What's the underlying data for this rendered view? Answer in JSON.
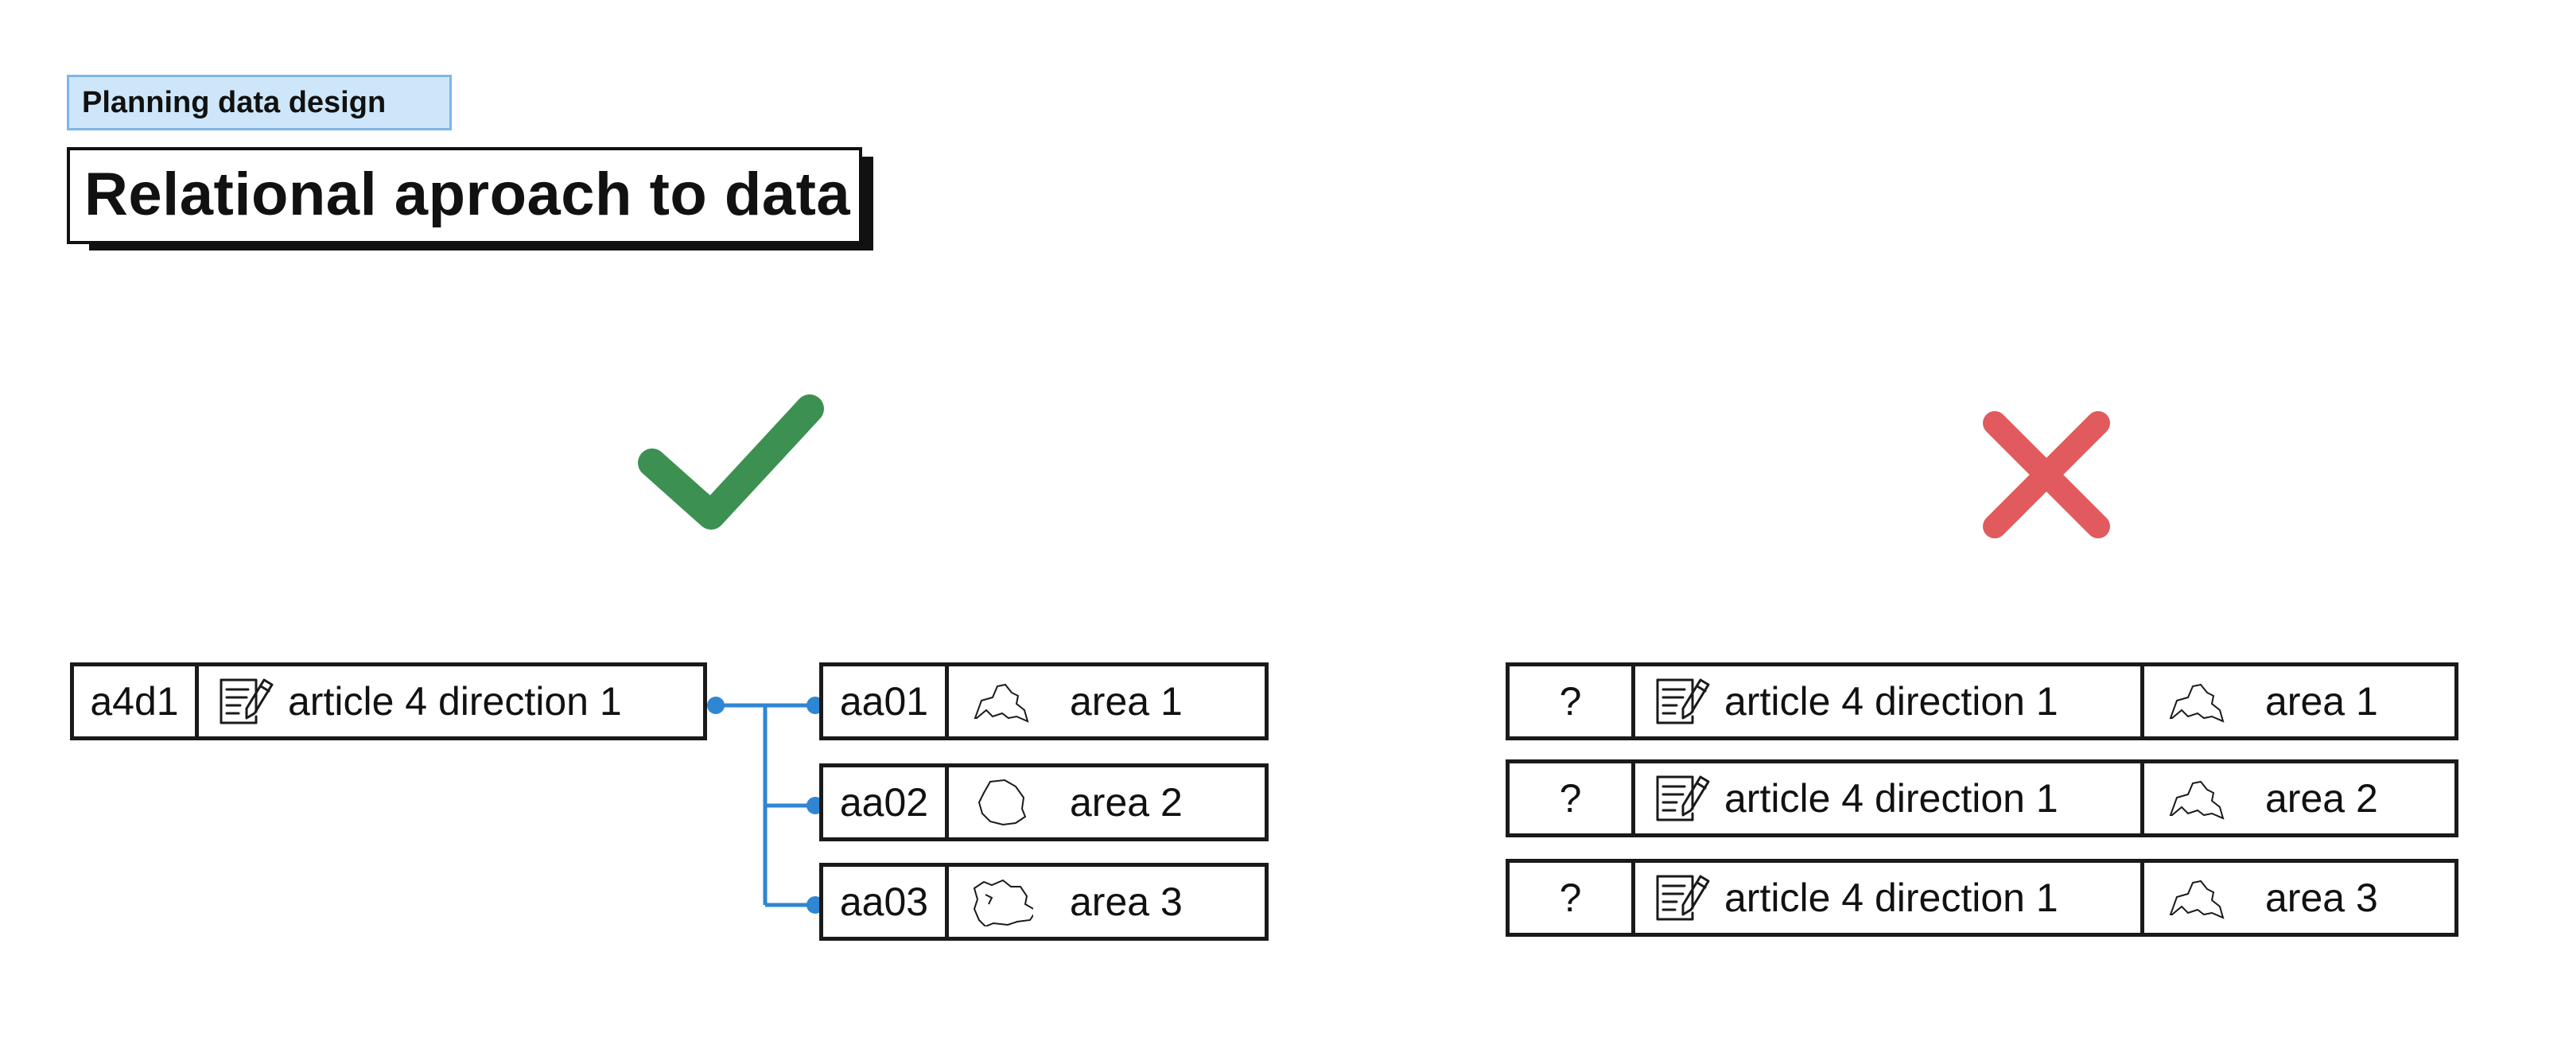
{
  "header": {
    "tag": "Planning data design",
    "title": "Relational aproach to data"
  },
  "good": {
    "mark": "check-icon",
    "color": "#3c9152",
    "connector_color": "#2f86d2",
    "parent": {
      "id": "a4d1",
      "label": "article 4 direction 1"
    },
    "children": [
      {
        "id": "aa01",
        "label": "area 1"
      },
      {
        "id": "aa02",
        "label": "area 2"
      },
      {
        "id": "aa03",
        "label": "area 3"
      }
    ]
  },
  "bad": {
    "mark": "cross-icon",
    "color": "#e05a5e",
    "rows": [
      {
        "id": "?",
        "label": "article 4 direction 1",
        "area": "area 1"
      },
      {
        "id": "?",
        "label": "article 4 direction 1",
        "area": "area 2"
      },
      {
        "id": "?",
        "label": "article 4 direction 1",
        "area": "area 3"
      }
    ]
  }
}
